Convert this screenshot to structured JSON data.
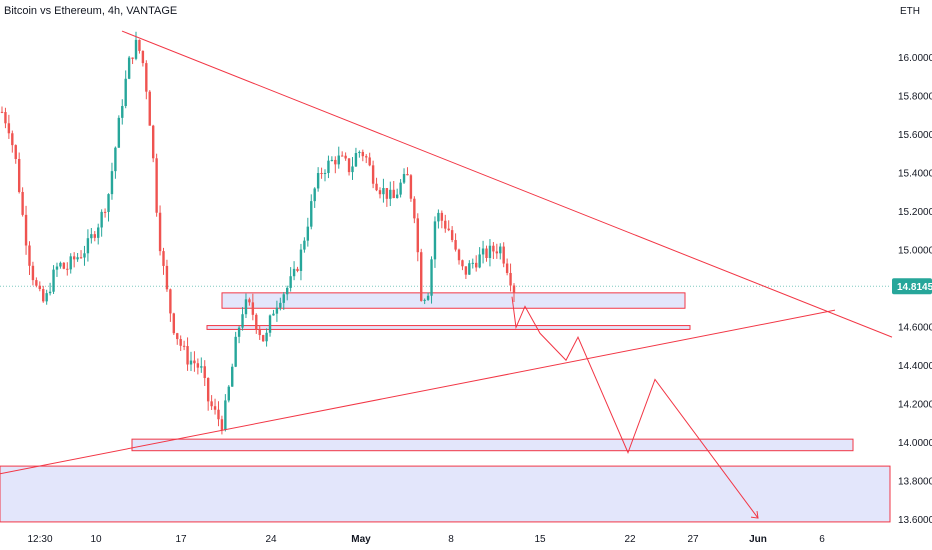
{
  "header": {
    "title": "Bitcoin vs Ethereum, 4h, VANTAGE"
  },
  "chart_data": {
    "type": "line",
    "title": "Bitcoin vs Ethereum, 4h, VANTAGE",
    "unit": "ETH",
    "ylim": [
      13.58,
      16.26
    ],
    "y_ticks": [
      "16.0000",
      "15.8000",
      "15.6000",
      "15.4000",
      "15.2000",
      "15.0000",
      "14.8000",
      "14.6000",
      "14.4000",
      "14.2000",
      "14.0000",
      "13.8000",
      "13.6000"
    ],
    "x_ticks": [
      "12:30",
      "10",
      "17",
      "24",
      "May",
      "8",
      "15",
      "22",
      "27",
      "Jun",
      "6"
    ],
    "last_price": "14.8145",
    "colors": {
      "up": "#26a69a",
      "down": "#ef5350",
      "drawing": "#f23645",
      "zone_fill": "#e3e6fb",
      "zone_border": "#f23645",
      "last_label_bg": "#26a69a",
      "last_line": "#7fc9c0"
    },
    "series": [
      {
        "values": [
          15.72,
          15.64,
          15.45,
          15.15,
          14.92,
          14.78,
          14.72,
          14.85,
          14.93,
          14.9,
          14.95,
          14.98,
          15.02,
          15.1,
          15.18,
          15.3,
          15.55,
          15.8,
          16.0,
          16.08,
          15.95,
          15.6,
          15.1,
          14.82,
          14.62,
          14.52,
          14.44,
          14.42,
          14.38,
          14.22,
          14.15,
          14.1,
          14.3,
          14.55,
          14.72,
          14.7,
          14.6,
          14.52,
          14.68,
          14.76,
          14.8,
          14.86,
          14.98,
          15.15,
          15.32,
          15.42,
          15.45,
          15.48,
          15.46,
          15.42,
          15.52,
          15.5,
          15.4,
          15.33,
          15.3,
          15.26,
          15.34,
          15.38,
          15.2,
          14.75,
          14.8,
          15.2,
          15.15,
          15.1,
          14.95,
          14.88,
          14.93,
          14.96,
          14.98,
          15.0,
          15.02,
          14.92,
          14.8
        ]
      }
    ],
    "drawings": {
      "upper_trendline": {
        "from": [
          "Apr 12",
          16.14
        ],
        "to": [
          "Jun 8",
          14.55
        ]
      },
      "lower_trendline": {
        "from": [
          "Apr 1",
          13.84
        ],
        "to": [
          "Jun 7",
          14.69
        ]
      },
      "zones": [
        {
          "from": 14.7,
          "to": 14.78
        },
        {
          "from": 14.59,
          "to": 14.61
        },
        {
          "from": 13.96,
          "to": 14.02
        },
        {
          "from": 13.59,
          "to": 13.88
        }
      ],
      "projection": [
        14.76,
        14.6,
        14.71,
        14.57,
        14.43,
        14.55,
        13.95,
        14.33,
        13.61
      ]
    }
  }
}
